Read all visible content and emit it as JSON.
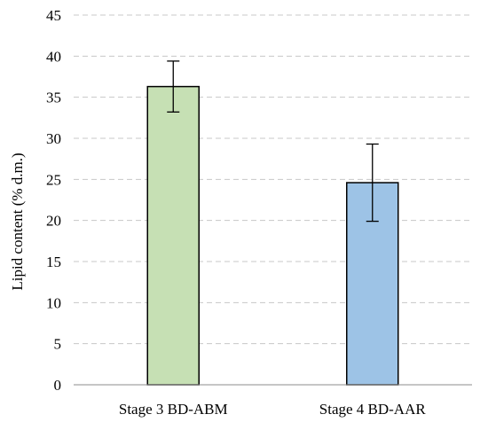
{
  "chart_data": {
    "type": "bar",
    "title": "",
    "xlabel": "",
    "ylabel": "Lipid content (% d.m.)",
    "ylim": [
      0,
      45
    ],
    "yticks": [
      0,
      5,
      10,
      15,
      20,
      25,
      30,
      35,
      40,
      45
    ],
    "grid": true,
    "categories": [
      "Stage 3 BD-ABM",
      "Stage 4 BD-AAR"
    ],
    "values": [
      36.3,
      24.6
    ],
    "error_low": [
      33.2,
      19.9
    ],
    "error_high": [
      39.4,
      29.3
    ],
    "colors": [
      "#c6e0b4",
      "#9dc3e6"
    ]
  }
}
